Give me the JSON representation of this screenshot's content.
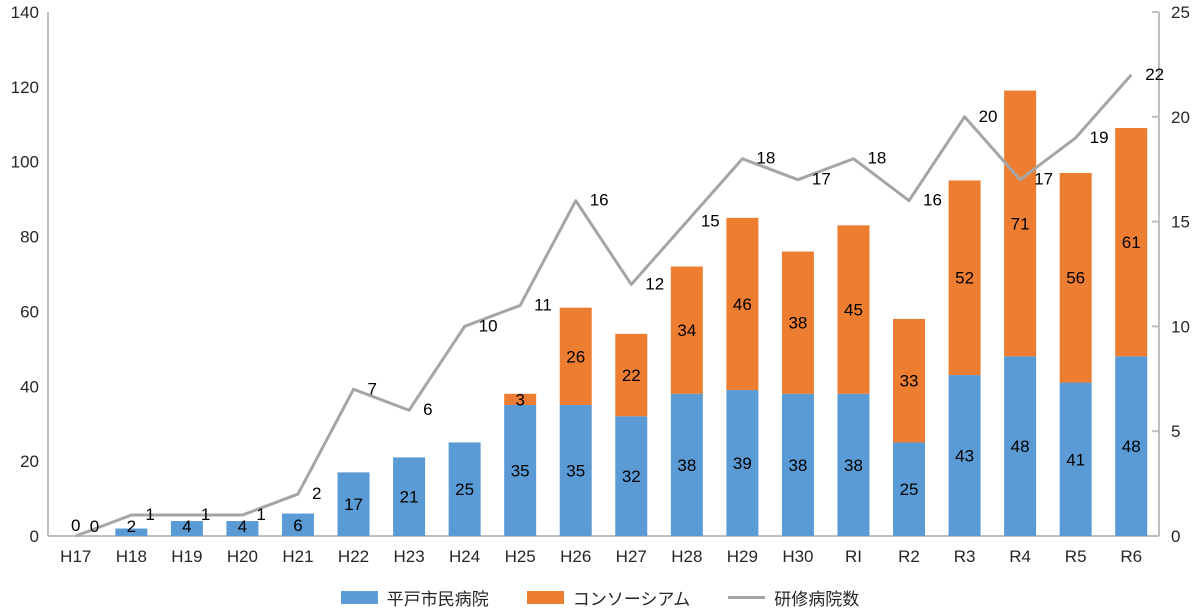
{
  "chart_data": {
    "type": "bar",
    "subtype": "stacked-bars-with-line-combo",
    "title": "",
    "xlabel": "",
    "ylabel": "",
    "grid": false,
    "legend_position": "bottom-center",
    "categories": [
      "H17",
      "H18",
      "H19",
      "H20",
      "H21",
      "H22",
      "H23",
      "H24",
      "H25",
      "H26",
      "H27",
      "H28",
      "H29",
      "H30",
      "RI",
      "R2",
      "R3",
      "R4",
      "R5",
      "R6"
    ],
    "series": [
      {
        "name": "平戸市民病院",
        "type": "bar",
        "stack": "total",
        "axis": "left",
        "color": "#5B9BD5",
        "values": [
          0,
          2,
          4,
          4,
          6,
          17,
          21,
          25,
          35,
          35,
          32,
          38,
          39,
          38,
          38,
          25,
          43,
          48,
          41,
          48
        ],
        "labels": [
          "0",
          "2",
          "4",
          "4",
          "6",
          "17",
          "21",
          "25",
          "35",
          "35",
          "32",
          "38",
          "39",
          "38",
          "38",
          "25",
          "43",
          "48",
          "41",
          "48"
        ]
      },
      {
        "name": "コンソーシアム",
        "type": "bar",
        "stack": "total",
        "axis": "left",
        "color": "#ED7D31",
        "values": [
          0,
          0,
          0,
          0,
          0,
          0,
          0,
          0,
          3,
          26,
          22,
          34,
          46,
          38,
          45,
          33,
          52,
          71,
          56,
          61
        ],
        "labels": [
          "",
          "",
          "",
          "",
          "",
          "",
          "",
          "",
          "3",
          "26",
          "22",
          "34",
          "46",
          "38",
          "45",
          "33",
          "52",
          "71",
          "56",
          "61"
        ]
      },
      {
        "name": "研修病院数",
        "type": "line",
        "axis": "right",
        "color": "#A5A5A5",
        "values": [
          0,
          1,
          1,
          1,
          2,
          7,
          6,
          10,
          11,
          16,
          12,
          15,
          18,
          17,
          18,
          16,
          20,
          17,
          19,
          22
        ],
        "labels": [
          "0",
          "1",
          "1",
          "1",
          "2",
          "7",
          "6",
          "10",
          "11",
          "16",
          "12",
          "15",
          "18",
          "17",
          "18",
          "16",
          "20",
          "17",
          "19",
          "22"
        ]
      }
    ],
    "left_axis": {
      "min": 0,
      "max": 140,
      "ticks": [
        "0",
        "20",
        "40",
        "60",
        "80",
        "100",
        "120",
        "140"
      ]
    },
    "right_axis": {
      "min": 0,
      "max": 25,
      "ticks": [
        "0",
        "5",
        "10",
        "15",
        "20",
        "25"
      ]
    },
    "legend": [
      {
        "label": "平戸市民病院",
        "color": "#5B9BD5",
        "marker": "bar"
      },
      {
        "label": "コンソーシアム",
        "color": "#ED7D31",
        "marker": "bar"
      },
      {
        "label": "研修病院数",
        "color": "#A5A5A5",
        "marker": "line"
      }
    ],
    "colors": {
      "axis_line": "#BFBFBF",
      "text": "#262626",
      "data_label": "#000000"
    }
  }
}
